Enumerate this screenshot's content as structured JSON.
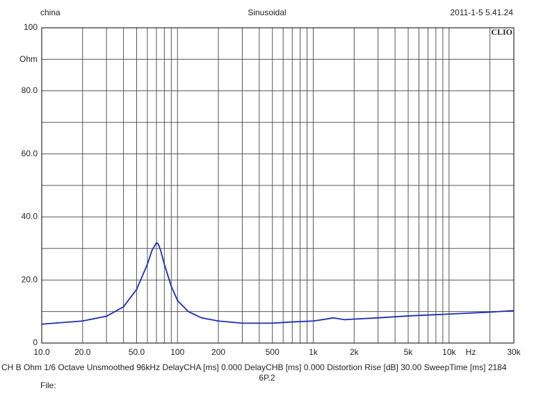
{
  "chart_data": {
    "type": "line",
    "header_left": "china",
    "title": "Sinusoidal",
    "header_right": "2011-1-5 5.41.24",
    "brand": "CLIO",
    "ylabel": "Ohm",
    "xlabel": "Hz",
    "footer": "CH B   Ohm   1/6 Octave   Unsmoothed   96kHz   DelayCHA [ms] 0.000    DelayCHB [ms] 0.000    Distortion Rise [dB] 30.00    SweepTime [ms] 2184",
    "subfooter": "6P.2",
    "file_label": "File:",
    "xscale": "log",
    "xlim": [
      10,
      30000
    ],
    "xticks": [
      {
        "value": 10,
        "label": "10.0"
      },
      {
        "value": 20,
        "label": "20.0"
      },
      {
        "value": 50,
        "label": "50.0"
      },
      100,
      200,
      500,
      {
        "value": 1000,
        "label": "1k"
      },
      {
        "value": 2000,
        "label": "2k"
      },
      {
        "value": 5000,
        "label": "5k"
      },
      {
        "value": 10000,
        "label": "10k"
      },
      {
        "value": 30000,
        "label": "30k"
      }
    ],
    "xgrid": [
      30,
      40,
      60,
      70,
      80,
      90,
      300,
      400,
      600,
      700,
      800,
      900,
      3000,
      4000,
      6000,
      7000,
      8000,
      9000,
      20000
    ],
    "ylim": [
      0,
      100
    ],
    "yticks": [
      0,
      {
        "value": 20,
        "label": "20.0"
      },
      {
        "value": 40,
        "label": "40.0"
      },
      {
        "value": 60,
        "label": "60.0"
      },
      {
        "value": 80,
        "label": "80.0"
      },
      100
    ],
    "ygrid": [
      10,
      30,
      50,
      70,
      90
    ],
    "grid": true,
    "color": "#1a2bb8",
    "x": [
      10,
      20,
      30,
      40,
      50,
      60,
      65,
      70,
      72,
      75,
      80,
      90,
      100,
      120,
      150,
      200,
      300,
      500,
      700,
      1000,
      1200,
      1400,
      1500,
      1700,
      2000,
      3000,
      5000,
      10000,
      20000,
      30000
    ],
    "values": [
      6.0,
      7.0,
      8.5,
      11.5,
      17,
      25,
      29.5,
      31.8,
      31.5,
      29.5,
      25,
      18,
      13.5,
      10,
      8,
      7,
      6.3,
      6.3,
      6.7,
      7.0,
      7.5,
      8.0,
      7.8,
      7.4,
      7.6,
      8.0,
      8.6,
      9.2,
      9.8,
      10.3
    ]
  }
}
